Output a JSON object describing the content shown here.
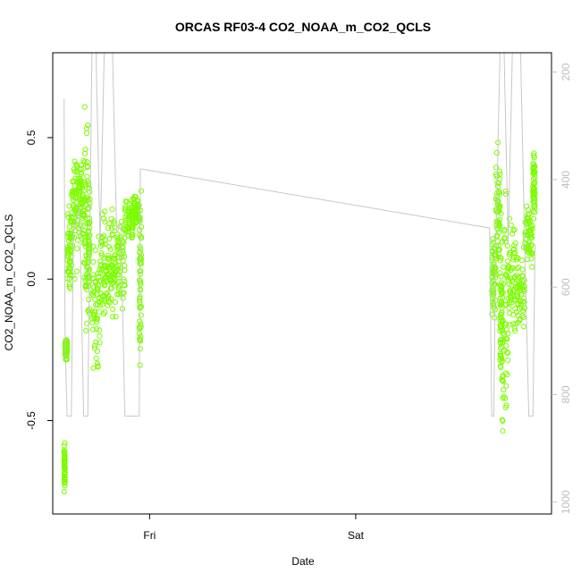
{
  "chart_data": {
    "type": "scatter",
    "title": "ORCAS RF03-4 CO2_NOAA_m_CO2_QCLS",
    "xlabel": "Date",
    "ylabel": "CO2_NOAA_m_CO2_QCLS",
    "x_ticks": [
      {
        "x": 1.0,
        "label": "Fri"
      },
      {
        "x": 2.0,
        "label": "Sat"
      }
    ],
    "xlim": [
      0.53,
      2.95
    ],
    "ylim": [
      -0.83,
      0.8
    ],
    "y_ticks": [
      -0.5,
      0.0,
      0.5
    ],
    "y_tick_labels": [
      "-0.5",
      "0.0",
      "0.5"
    ],
    "right_axis": {
      "ylim": [
        1022,
        164
      ],
      "reversed": true,
      "ticks": [
        200,
        400,
        600,
        800,
        1000
      ],
      "tick_labels": [
        "200",
        "400",
        "600",
        "800",
        "1000"
      ],
      "color": "#bdbdbd"
    },
    "series": [
      {
        "style": "points",
        "color": "#7cfc00",
        "segments": [
          {
            "x_start": 0.58,
            "x_end": 0.71,
            "clusters": [
              {
                "x": 0.585,
                "lo": -0.78,
                "hi": -0.55
              },
              {
                "x": 0.59,
                "lo": -0.3,
                "hi": -0.2
              },
              {
                "x": 0.6,
                "lo": -0.12,
                "hi": 0.3
              },
              {
                "x": 0.62,
                "lo": -0.05,
                "hi": 0.58
              },
              {
                "x": 0.65,
                "lo": 0.05,
                "hi": 0.5
              },
              {
                "x": 0.68,
                "lo": -0.25,
                "hi": 0.72
              },
              {
                "x": 0.7,
                "lo": -0.2,
                "hi": 0.45
              }
            ]
          },
          {
            "x_start": 0.7,
            "x_end": 0.96,
            "clusters": [
              {
                "x": 0.72,
                "lo": -0.4,
                "hi": 0.22
              },
              {
                "x": 0.76,
                "lo": -0.25,
                "hi": 0.3
              },
              {
                "x": 0.8,
                "lo": -0.2,
                "hi": 0.28
              },
              {
                "x": 0.84,
                "lo": -0.2,
                "hi": 0.3
              },
              {
                "x": 0.88,
                "lo": 0.1,
                "hi": 0.3
              },
              {
                "x": 0.92,
                "lo": 0.15,
                "hi": 0.32
              },
              {
                "x": 0.95,
                "lo": -0.5,
                "hi": 0.47
              }
            ]
          },
          {
            "x_start": 2.65,
            "x_end": 2.87,
            "clusters": [
              {
                "x": 2.66,
                "lo": -0.2,
                "hi": 0.2
              },
              {
                "x": 2.68,
                "lo": -0.05,
                "hi": 0.52
              },
              {
                "x": 2.7,
                "lo": -0.58,
                "hi": 0.3
              },
              {
                "x": 2.71,
                "lo": -0.7,
                "hi": 0.45
              },
              {
                "x": 2.74,
                "lo": -0.3,
                "hi": 0.3
              },
              {
                "x": 2.78,
                "lo": -0.25,
                "hi": 0.2
              },
              {
                "x": 2.82,
                "lo": 0.0,
                "hi": 0.3
              },
              {
                "x": 2.86,
                "lo": 0.15,
                "hi": 0.51
              }
            ]
          }
        ]
      },
      {
        "style": "line",
        "axis": "right",
        "color": "#c8c8c8",
        "points": [
          [
            0.585,
            250
          ],
          [
            0.59,
            700
          ],
          [
            0.6,
            840
          ],
          [
            0.62,
            840
          ],
          [
            0.63,
            500
          ],
          [
            0.66,
            450
          ],
          [
            0.68,
            840
          ],
          [
            0.7,
            840
          ],
          [
            0.72,
            164
          ],
          [
            0.74,
            164
          ],
          [
            0.76,
            520
          ],
          [
            0.78,
            164
          ],
          [
            0.8,
            164
          ],
          [
            0.82,
            164
          ],
          [
            0.84,
            500
          ],
          [
            0.86,
            480
          ],
          [
            0.88,
            840
          ],
          [
            0.9,
            840
          ],
          [
            0.92,
            840
          ],
          [
            0.95,
            840
          ],
          [
            0.955,
            380
          ],
          [
            2.65,
            490
          ],
          [
            2.66,
            840
          ],
          [
            2.67,
            840
          ],
          [
            2.68,
            520
          ],
          [
            2.7,
            164
          ],
          [
            2.72,
            164
          ],
          [
            2.74,
            520
          ],
          [
            2.76,
            164
          ],
          [
            2.78,
            164
          ],
          [
            2.8,
            164
          ],
          [
            2.82,
            520
          ],
          [
            2.84,
            840
          ],
          [
            2.86,
            840
          ],
          [
            2.87,
            520
          ]
        ]
      }
    ],
    "grid": false,
    "legend": "none"
  }
}
